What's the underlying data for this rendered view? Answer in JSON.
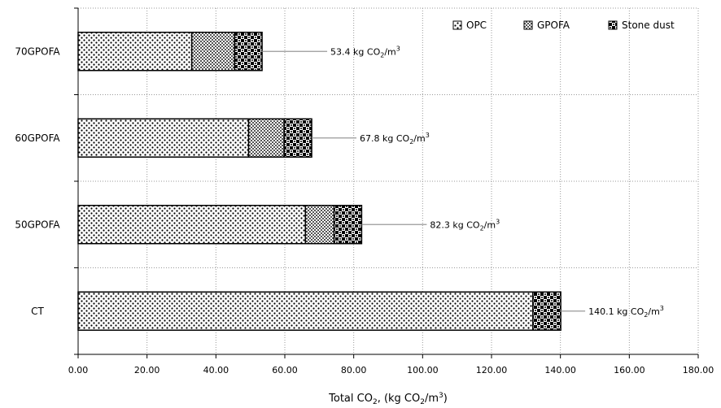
{
  "chart_data": {
    "type": "bar",
    "orientation": "horizontal",
    "stacked": true,
    "categories": [
      "CT",
      "50GPOFA",
      "60GPOFA",
      "70GPOFA"
    ],
    "series": [
      {
        "name": "OPC",
        "values": [
          132.0,
          66.0,
          49.5,
          33.0
        ]
      },
      {
        "name": "GPOFA",
        "values": [
          0.0,
          8.3,
          10.3,
          12.4
        ]
      },
      {
        "name": "Stone dust",
        "values": [
          8.1,
          8.0,
          8.0,
          8.0
        ]
      }
    ],
    "totals": [
      140.1,
      82.3,
      67.8,
      53.4
    ],
    "annotations": [
      {
        "category": "CT",
        "text_main": "140.1 kg CO",
        "sub": "2",
        "mid": "/m",
        "sup": "3"
      },
      {
        "category": "50GPOFA",
        "text_main": "82.3 kg CO",
        "sub": "2",
        "mid": "/m",
        "sup": "3"
      },
      {
        "category": "60GPOFA",
        "text_main": "67.8 kg CO",
        "sub": "2",
        "mid": "/m",
        "sup": "3"
      },
      {
        "category": "70GPOFA",
        "text_main": "53.4 kg CO",
        "sub": "2",
        "mid": "/m",
        "sup": "3"
      }
    ],
    "xlim": [
      0,
      180
    ],
    "xticks": [
      "0.00",
      "20.00",
      "40.00",
      "60.00",
      "80.00",
      "100.00",
      "120.00",
      "140.00",
      "160.00",
      "180.00"
    ],
    "xlabel": {
      "a": "Total CO",
      "b": "2",
      "c": ", (kg CO",
      "d": "2",
      "e": "/m",
      "f": "3",
      "g": ")"
    },
    "ylabel": "",
    "title": "",
    "grid": "dotted",
    "legend_position": "top-right"
  }
}
